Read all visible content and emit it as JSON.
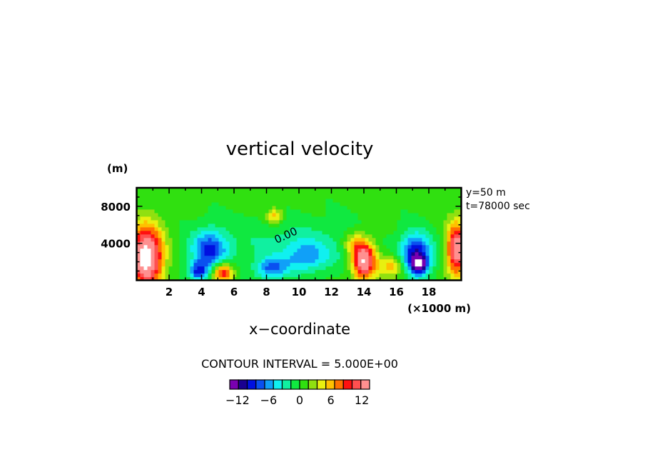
{
  "chart_data": {
    "type": "heatmap",
    "title": "vertical velocity",
    "xlabel": "x−coordinate",
    "x_unit": "(×1000 m)",
    "y_unit": "(m)",
    "xlim": [
      0,
      20
    ],
    "ylim": [
      0,
      10000
    ],
    "xticks": [
      2,
      4,
      6,
      8,
      10,
      12,
      14,
      16,
      18
    ],
    "xtick_labels": [
      "2",
      "4",
      "6",
      "8",
      "10",
      "12",
      "14",
      "16",
      "18"
    ],
    "yticks": [
      4000,
      8000
    ],
    "ytick_labels": [
      "4000",
      "8000"
    ],
    "annotations": [
      "y=50 m",
      "t=78000 sec"
    ],
    "contour_label": "0.00",
    "contour_interval_text": "CONTOUR INTERVAL = 5.000E+00",
    "colorbar": {
      "min": -13.5,
      "max": 13.5,
      "colors": [
        "#7a00b0",
        "#1a0090",
        "#0010e0",
        "#0a50f0",
        "#10a0f8",
        "#10f0f0",
        "#10f0a0",
        "#10e840",
        "#30e010",
        "#90e010",
        "#e8f010",
        "#ffc000",
        "#ff7000",
        "#ff1010",
        "#ff5050",
        "#ff9090"
      ],
      "ticks": [
        -12,
        -6,
        0,
        6,
        12
      ],
      "tick_labels": [
        "−12",
        "−6",
        "0",
        "6",
        "12"
      ]
    },
    "field_components": [
      {
        "x": 0.6,
        "y": 2600,
        "amp": 17,
        "sx": 0.7,
        "sy": 2300
      },
      {
        "x": 19.75,
        "y": 3400,
        "amp": 14,
        "sx": 0.45,
        "sy": 2000
      },
      {
        "x": 14.0,
        "y": 2200,
        "amp": 15,
        "sx": 0.5,
        "sy": 1500
      },
      {
        "x": 5.3,
        "y": 900,
        "amp": 11,
        "sx": 0.45,
        "sy": 800
      },
      {
        "x": 15.8,
        "y": 1600,
        "amp": 6,
        "sx": 0.6,
        "sy": 900
      },
      {
        "x": 13.3,
        "y": 4000,
        "amp": 4,
        "sx": 0.4,
        "sy": 800
      },
      {
        "x": 8.5,
        "y": 7000,
        "amp": 6,
        "sx": 0.35,
        "sy": 600
      },
      {
        "x": 4.5,
        "y": 3200,
        "amp": -9,
        "sx": 0.8,
        "sy": 1600
      },
      {
        "x": 3.8,
        "y": 1000,
        "amp": -8,
        "sx": 0.4,
        "sy": 700
      },
      {
        "x": 8.3,
        "y": 1300,
        "amp": -7,
        "sx": 0.7,
        "sy": 800
      },
      {
        "x": 10.5,
        "y": 2600,
        "amp": -5,
        "sx": 1.0,
        "sy": 1200
      },
      {
        "x": 17.2,
        "y": 2800,
        "amp": -11,
        "sx": 0.7,
        "sy": 1600
      },
      {
        "x": 17.4,
        "y": 1700,
        "amp": -8,
        "sx": 0.35,
        "sy": 700
      },
      {
        "x": 9.5,
        "y": 4000,
        "amp": -2.5,
        "sx": 3.0,
        "sy": 2000
      }
    ]
  }
}
